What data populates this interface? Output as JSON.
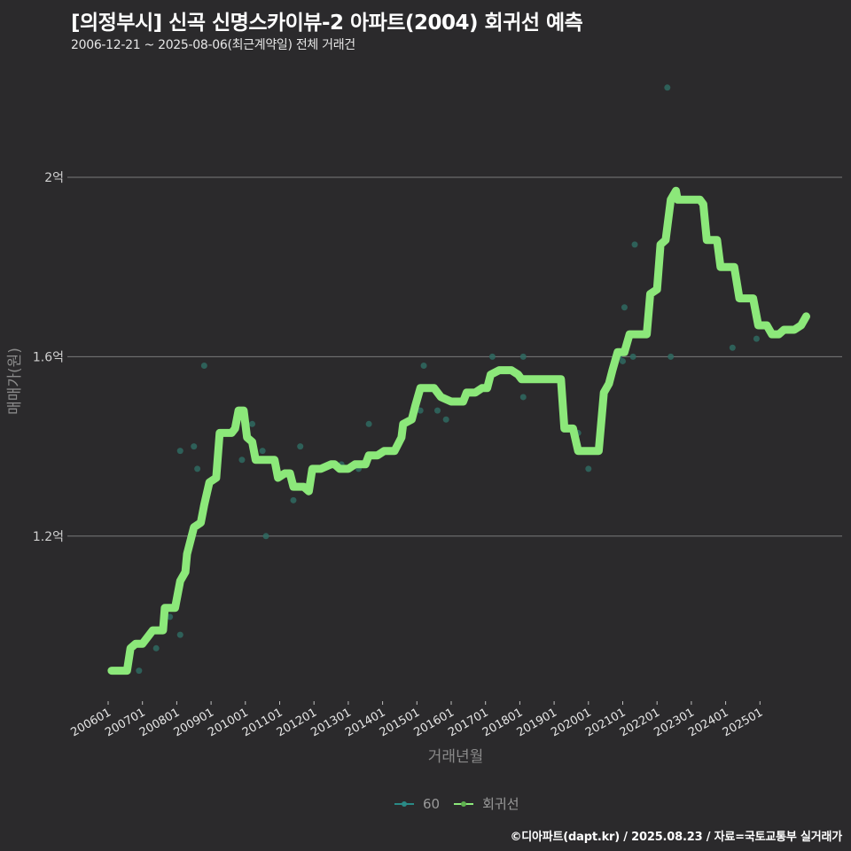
{
  "header": {
    "title": "[의정부시] 신곡 신명스카이뷰-2 아파트(2004) 회귀선 예측",
    "subtitle": "2006-12-21 ~ 2025-08-06(최근계약일) 전체 거래건"
  },
  "footer": {
    "credit": "©디아파트(dapt.kr) / 2025.08.23 / 자료=국토교통부 실거래가"
  },
  "legend": {
    "items": [
      {
        "label": "60",
        "color": "#2a8a86"
      },
      {
        "label": "회귀선",
        "color": "#8ce87a"
      }
    ]
  },
  "colors": {
    "background": "#2b2a2c",
    "grid": "#7a7a7a",
    "scatter": "#2f6a62",
    "regression": "#8ce87a"
  },
  "chart_data": {
    "type": "line",
    "title": "[의정부시] 신곡 신명스카이뷰-2 아파트(2004) 회귀선 예측",
    "subtitle": "2006-12-21 ~ 2025-08-06(최근계약일) 전체 거래건",
    "xlabel": "거래년월",
    "ylabel": "매매가(원)",
    "x_ticks": [
      "200601",
      "200701",
      "200801",
      "200901",
      "201001",
      "201101",
      "201201",
      "201301",
      "201401",
      "201501",
      "201601",
      "201701",
      "201801",
      "201901",
      "202001",
      "202101",
      "202201",
      "202301",
      "202401",
      "202501"
    ],
    "y_ticks": [
      {
        "value": 1.2,
        "label": "1.2억"
      },
      {
        "value": 1.6,
        "label": "1.6억"
      },
      {
        "value": 2.0,
        "label": "2억"
      }
    ],
    "ylim": [
      0.88,
      2.2
    ],
    "xlim": [
      2005.6,
      2026.2
    ],
    "grid": true,
    "legend_position": "bottom",
    "series": [
      {
        "name": "60",
        "type": "scatter",
        "points": [
          [
            2006.9,
            0.9
          ],
          [
            2007.4,
            0.95
          ],
          [
            2007.5,
            0.99
          ],
          [
            2007.8,
            1.02
          ],
          [
            2007.95,
            1.05
          ],
          [
            2008.1,
            0.98
          ],
          [
            2008.1,
            1.1
          ],
          [
            2008.1,
            1.39
          ],
          [
            2008.5,
            1.4
          ],
          [
            2008.6,
            1.35
          ],
          [
            2008.8,
            1.58
          ],
          [
            2009.9,
            1.37
          ],
          [
            2010.2,
            1.45
          ],
          [
            2010.5,
            1.39
          ],
          [
            2010.6,
            1.2
          ],
          [
            2011.4,
            1.28
          ],
          [
            2011.6,
            1.4
          ],
          [
            2012.6,
            1.36
          ],
          [
            2012.8,
            1.36
          ],
          [
            2013.3,
            1.35
          ],
          [
            2013.6,
            1.45
          ],
          [
            2015.1,
            1.48
          ],
          [
            2015.2,
            1.58
          ],
          [
            2015.6,
            1.48
          ],
          [
            2015.85,
            1.46
          ],
          [
            2017.2,
            1.6
          ],
          [
            2018.1,
            1.51
          ],
          [
            2018.1,
            1.6
          ],
          [
            2019.7,
            1.43
          ],
          [
            2020.0,
            1.35
          ],
          [
            2020.9,
            1.6
          ],
          [
            2021.0,
            1.59
          ],
          [
            2021.05,
            1.71
          ],
          [
            2021.3,
            1.6
          ],
          [
            2021.35,
            1.85
          ],
          [
            2022.3,
            2.2
          ],
          [
            2022.4,
            1.6
          ],
          [
            2023.15,
            1.95
          ],
          [
            2024.2,
            1.62
          ],
          [
            2024.9,
            1.64
          ]
        ]
      },
      {
        "name": "회귀선",
        "type": "line",
        "points": [
          [
            2006.1,
            0.9
          ],
          [
            2006.55,
            0.9
          ],
          [
            2006.65,
            0.95
          ],
          [
            2006.8,
            0.96
          ],
          [
            2007.0,
            0.96
          ],
          [
            2007.3,
            0.99
          ],
          [
            2007.6,
            0.99
          ],
          [
            2007.65,
            1.04
          ],
          [
            2007.95,
            1.04
          ],
          [
            2008.1,
            1.1
          ],
          [
            2008.25,
            1.12
          ],
          [
            2008.3,
            1.16
          ],
          [
            2008.5,
            1.22
          ],
          [
            2008.7,
            1.23
          ],
          [
            2008.8,
            1.27
          ],
          [
            2008.95,
            1.32
          ],
          [
            2009.15,
            1.33
          ],
          [
            2009.25,
            1.43
          ],
          [
            2009.6,
            1.43
          ],
          [
            2009.7,
            1.44
          ],
          [
            2009.8,
            1.48
          ],
          [
            2009.95,
            1.48
          ],
          [
            2010.05,
            1.42
          ],
          [
            2010.2,
            1.41
          ],
          [
            2010.3,
            1.37
          ],
          [
            2010.85,
            1.37
          ],
          [
            2010.95,
            1.33
          ],
          [
            2011.15,
            1.34
          ],
          [
            2011.3,
            1.34
          ],
          [
            2011.4,
            1.31
          ],
          [
            2011.7,
            1.31
          ],
          [
            2011.85,
            1.3
          ],
          [
            2011.95,
            1.35
          ],
          [
            2012.2,
            1.35
          ],
          [
            2012.5,
            1.36
          ],
          [
            2012.6,
            1.36
          ],
          [
            2012.75,
            1.35
          ],
          [
            2013.0,
            1.35
          ],
          [
            2013.2,
            1.36
          ],
          [
            2013.5,
            1.36
          ],
          [
            2013.6,
            1.38
          ],
          [
            2013.85,
            1.38
          ],
          [
            2014.05,
            1.39
          ],
          [
            2014.35,
            1.39
          ],
          [
            2014.55,
            1.42
          ],
          [
            2014.6,
            1.45
          ],
          [
            2014.85,
            1.46
          ],
          [
            2014.95,
            1.49
          ],
          [
            2015.1,
            1.53
          ],
          [
            2015.5,
            1.53
          ],
          [
            2015.7,
            1.51
          ],
          [
            2016.0,
            1.5
          ],
          [
            2016.35,
            1.5
          ],
          [
            2016.45,
            1.52
          ],
          [
            2016.7,
            1.52
          ],
          [
            2016.9,
            1.53
          ],
          [
            2017.05,
            1.53
          ],
          [
            2017.15,
            1.56
          ],
          [
            2017.4,
            1.57
          ],
          [
            2017.75,
            1.57
          ],
          [
            2017.95,
            1.56
          ],
          [
            2018.05,
            1.55
          ],
          [
            2019.0,
            1.55
          ],
          [
            2019.2,
            1.55
          ],
          [
            2019.3,
            1.44
          ],
          [
            2019.55,
            1.44
          ],
          [
            2019.7,
            1.39
          ],
          [
            2020.0,
            1.39
          ],
          [
            2020.3,
            1.39
          ],
          [
            2020.45,
            1.52
          ],
          [
            2020.6,
            1.54
          ],
          [
            2020.7,
            1.57
          ],
          [
            2020.85,
            1.61
          ],
          [
            2021.05,
            1.61
          ],
          [
            2021.2,
            1.65
          ],
          [
            2021.7,
            1.65
          ],
          [
            2021.8,
            1.74
          ],
          [
            2022.0,
            1.75
          ],
          [
            2022.1,
            1.85
          ],
          [
            2022.25,
            1.86
          ],
          [
            2022.4,
            1.95
          ],
          [
            2022.55,
            1.97
          ],
          [
            2022.6,
            1.95
          ],
          [
            2023.25,
            1.95
          ],
          [
            2023.35,
            1.94
          ],
          [
            2023.45,
            1.86
          ],
          [
            2023.75,
            1.86
          ],
          [
            2023.85,
            1.8
          ],
          [
            2024.25,
            1.8
          ],
          [
            2024.4,
            1.73
          ],
          [
            2024.8,
            1.73
          ],
          [
            2024.95,
            1.67
          ],
          [
            2025.2,
            1.67
          ],
          [
            2025.35,
            1.65
          ],
          [
            2025.55,
            1.65
          ],
          [
            2025.7,
            1.66
          ],
          [
            2026.0,
            1.66
          ],
          [
            2026.2,
            1.67
          ],
          [
            2026.35,
            1.69
          ]
        ]
      }
    ]
  }
}
